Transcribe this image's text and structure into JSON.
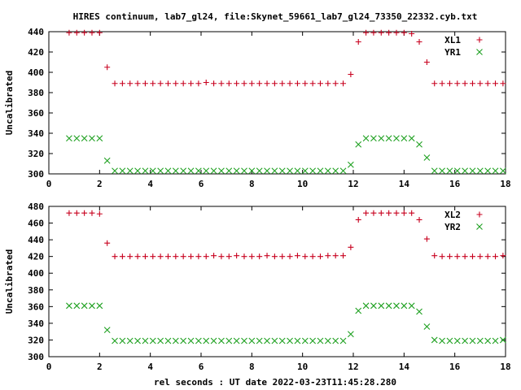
{
  "title": "HIRES continuum, lab7_gl24, file:Skynet_59661_lab7_gl24_73350_22332.cyb.txt",
  "xlabel": "rel seconds : UT date 2022-03-23T11:45:28.280",
  "colors": {
    "red": "#c8001e",
    "green": "#1ea020"
  },
  "chart_data": [
    {
      "type": "scatter",
      "ylabel": "Uncalibrated",
      "xlim": [
        0,
        18
      ],
      "ylim": [
        300,
        440
      ],
      "xticks": [
        0,
        2,
        4,
        6,
        8,
        10,
        12,
        14,
        16,
        18
      ],
      "yticks": [
        300,
        320,
        340,
        360,
        380,
        400,
        420,
        440
      ],
      "legend_position": "top-right",
      "x": [
        0.8,
        1.1,
        1.4,
        1.7,
        2.0,
        2.3,
        2.6,
        2.9,
        3.2,
        3.5,
        3.8,
        4.1,
        4.4,
        4.7,
        5.0,
        5.3,
        5.6,
        5.9,
        6.2,
        6.5,
        6.8,
        7.1,
        7.4,
        7.7,
        8.0,
        8.3,
        8.6,
        8.9,
        9.2,
        9.5,
        9.8,
        10.1,
        10.4,
        10.7,
        11.0,
        11.3,
        11.6,
        11.9,
        12.2,
        12.5,
        12.8,
        13.1,
        13.4,
        13.7,
        14.0,
        14.3,
        14.6,
        14.9,
        15.2,
        15.5,
        15.8,
        16.1,
        16.4,
        16.7,
        17.0,
        17.3,
        17.6,
        17.9
      ],
      "series": [
        {
          "name": "XL1",
          "marker": "plus",
          "color": "#c8001e",
          "values": [
            439,
            439,
            439,
            439,
            439,
            405,
            389,
            389,
            389,
            389,
            389,
            389,
            389,
            389,
            389,
            389,
            389,
            389,
            390,
            389,
            389,
            389,
            389,
            389,
            389,
            389,
            389,
            389,
            389,
            389,
            389,
            389,
            389,
            389,
            389,
            389,
            389,
            398,
            430,
            439,
            439,
            439,
            439,
            439,
            439,
            438,
            430,
            410,
            389,
            389,
            389,
            389,
            389,
            389,
            389,
            389,
            389,
            389
          ]
        },
        {
          "name": "YR1",
          "marker": "cross",
          "color": "#1ea020",
          "values": [
            335,
            335,
            335,
            335,
            335,
            313,
            303,
            303,
            303,
            303,
            303,
            303,
            303,
            303,
            303,
            303,
            303,
            303,
            303,
            303,
            303,
            303,
            303,
            303,
            303,
            303,
            303,
            303,
            303,
            303,
            303,
            303,
            303,
            303,
            303,
            303,
            303,
            309,
            329,
            335,
            335,
            335,
            335,
            335,
            335,
            335,
            329,
            316,
            303,
            303,
            303,
            303,
            303,
            303,
            303,
            303,
            303,
            303
          ]
        }
      ]
    },
    {
      "type": "scatter",
      "ylabel": "Uncalibrated",
      "xlim": [
        0,
        18
      ],
      "ylim": [
        300,
        480
      ],
      "xticks": [
        0,
        2,
        4,
        6,
        8,
        10,
        12,
        14,
        16,
        18
      ],
      "yticks": [
        300,
        320,
        340,
        360,
        380,
        400,
        420,
        440,
        460,
        480
      ],
      "legend_position": "top-right",
      "x": [
        0.8,
        1.1,
        1.4,
        1.7,
        2.0,
        2.3,
        2.6,
        2.9,
        3.2,
        3.5,
        3.8,
        4.1,
        4.4,
        4.7,
        5.0,
        5.3,
        5.6,
        5.9,
        6.2,
        6.5,
        6.8,
        7.1,
        7.4,
        7.7,
        8.0,
        8.3,
        8.6,
        8.9,
        9.2,
        9.5,
        9.8,
        10.1,
        10.4,
        10.7,
        11.0,
        11.3,
        11.6,
        11.9,
        12.2,
        12.5,
        12.8,
        13.1,
        13.4,
        13.7,
        14.0,
        14.3,
        14.6,
        14.9,
        15.2,
        15.5,
        15.8,
        16.1,
        16.4,
        16.7,
        17.0,
        17.3,
        17.6,
        17.9
      ],
      "series": [
        {
          "name": "XL2",
          "marker": "plus",
          "color": "#c8001e",
          "values": [
            472,
            472,
            472,
            472,
            471,
            436,
            420,
            420,
            420,
            420,
            420,
            420,
            420,
            420,
            420,
            420,
            420,
            420,
            420,
            421,
            420,
            420,
            421,
            420,
            420,
            420,
            421,
            420,
            420,
            420,
            421,
            420,
            420,
            420,
            421,
            421,
            421,
            431,
            464,
            472,
            472,
            472,
            472,
            472,
            472,
            472,
            464,
            441,
            421,
            420,
            420,
            420,
            420,
            420,
            420,
            420,
            420,
            421
          ]
        },
        {
          "name": "YR2",
          "marker": "cross",
          "color": "#1ea020",
          "values": [
            361,
            361,
            361,
            361,
            361,
            332,
            319,
            319,
            319,
            319,
            319,
            319,
            319,
            319,
            319,
            319,
            319,
            319,
            319,
            319,
            319,
            319,
            319,
            319,
            319,
            319,
            319,
            319,
            319,
            319,
            319,
            319,
            319,
            319,
            319,
            319,
            319,
            327,
            355,
            361,
            361,
            361,
            361,
            361,
            361,
            361,
            354,
            336,
            320,
            319,
            319,
            319,
            319,
            319,
            319,
            319,
            319,
            320
          ]
        }
      ]
    }
  ]
}
